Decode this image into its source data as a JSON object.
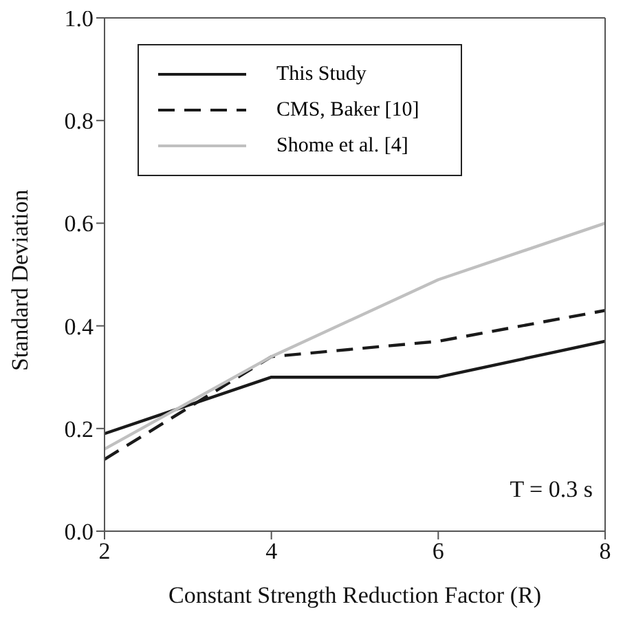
{
  "chart_data": {
    "type": "line",
    "xlabel": "Constant Strength Reduction Factor (R)",
    "ylabel": "Standard Deviation",
    "x": [
      2,
      4,
      6,
      8
    ],
    "xlim": [
      2,
      8
    ],
    "xticks": [
      2,
      4,
      6,
      8
    ],
    "ylim": [
      0,
      1
    ],
    "yticks": [
      {
        "value": 0,
        "label": "0.0"
      },
      {
        "value": 0.2,
        "label": "0.2"
      },
      {
        "value": 0.4,
        "label": "0.4"
      },
      {
        "value": 0.6,
        "label": "0.6"
      },
      {
        "value": 0.8,
        "label": "0.8"
      },
      {
        "value": 1,
        "label": "1.0"
      }
    ],
    "series": [
      {
        "name": "This Study",
        "color": "#1a1a1a",
        "line_style": "solid",
        "values": [
          0.19,
          0.3,
          0.3,
          0.37
        ]
      },
      {
        "name": "CMS, Baker [10]",
        "color": "#1a1a1a",
        "line_style": "dashed",
        "values": [
          0.14,
          0.34,
          0.37,
          0.43
        ]
      },
      {
        "name": "Shome et al. [4]",
        "color": "#c0c0c0",
        "line_style": "solid",
        "values": [
          0.16,
          0.34,
          0.49,
          0.6
        ]
      }
    ],
    "legend": "top left",
    "grid": false,
    "marker": "none",
    "annotations": [
      "T = 0.3 s"
    ]
  }
}
